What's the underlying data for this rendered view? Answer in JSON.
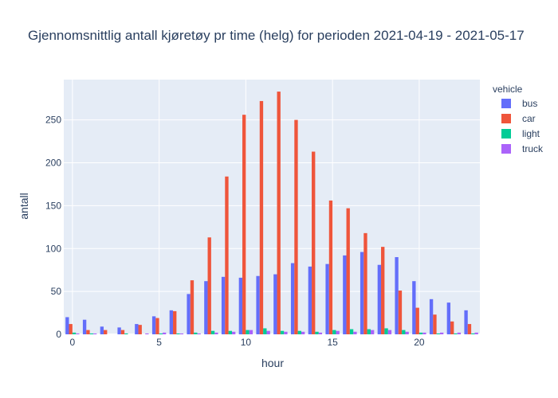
{
  "chart_data": {
    "type": "bar",
    "barmode": "group",
    "title": "Gjennomsnittlig antall kjøretøy pr time (helg) for perioden 2021-04-19 - 2021-05-17",
    "xlabel": "hour",
    "ylabel": "antall",
    "x": [
      0,
      1,
      2,
      3,
      4,
      5,
      6,
      7,
      8,
      9,
      10,
      11,
      12,
      13,
      14,
      15,
      16,
      17,
      18,
      19,
      20,
      21,
      22,
      23
    ],
    "xlim": [
      -0.5,
      23.5
    ],
    "ylim": [
      0,
      297
    ],
    "xticks": [
      0,
      5,
      10,
      15,
      20
    ],
    "yticks": [
      0,
      50,
      100,
      150,
      200,
      250
    ],
    "grid": true,
    "plot_bg": "#e5ecf6",
    "legend": {
      "title": "vehicle",
      "placement": "right"
    },
    "series": [
      {
        "name": "bus",
        "color": "#636efa",
        "values": [
          20,
          17,
          9,
          8,
          12,
          21,
          28,
          47,
          62,
          67,
          66,
          68,
          70,
          83,
          79,
          82,
          92,
          96,
          81,
          90,
          62,
          41,
          37,
          28
        ]
      },
      {
        "name": "car",
        "color": "#ef553b",
        "values": [
          12,
          5,
          5,
          5,
          11,
          19,
          27,
          63,
          113,
          184,
          256,
          272,
          283,
          250,
          213,
          156,
          147,
          118,
          102,
          51,
          31,
          23,
          15,
          12
        ]
      },
      {
        "name": "light",
        "color": "#00cc96",
        "values": [
          2,
          1,
          0,
          1,
          0,
          1,
          1,
          2,
          4,
          4,
          5,
          7,
          4,
          4,
          3,
          5,
          6,
          6,
          7,
          5,
          2,
          1,
          1,
          1
        ]
      },
      {
        "name": "truck",
        "color": "#ab63fa",
        "values": [
          1,
          1,
          0,
          0,
          1,
          2,
          1,
          1,
          2,
          3,
          5,
          4,
          3,
          3,
          2,
          4,
          3,
          5,
          5,
          3,
          2,
          2,
          2,
          2
        ]
      }
    ]
  }
}
